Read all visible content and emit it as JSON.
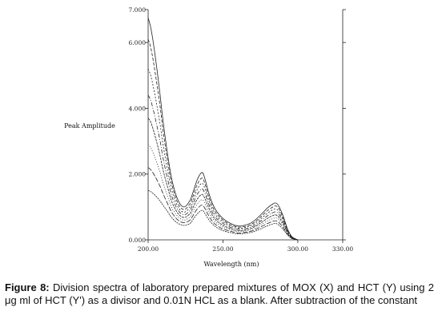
{
  "chart_data": {
    "type": "line",
    "xlabel": "Wavelength (nm)",
    "ylabel": "Peak Amplitude",
    "xlim": [
      200,
      330
    ],
    "ylim": [
      0,
      7
    ],
    "x_ticks": [
      200,
      250,
      300,
      330
    ],
    "x_tick_labels": [
      "200.00",
      "250.00",
      "300.00",
      "330.00"
    ],
    "y_ticks": [
      0,
      2,
      4,
      6,
      7
    ],
    "y_tick_labels": [
      "0.000",
      "2.000",
      "4.000",
      "6.000",
      "7.000"
    ],
    "grid": false,
    "line_color": "#222222",
    "x": [
      200,
      202,
      205,
      208,
      210,
      213,
      216,
      220,
      224,
      228,
      230,
      233,
      236,
      238,
      240,
      243,
      246,
      250,
      255,
      260,
      265,
      270,
      275,
      280,
      283,
      285,
      287,
      290,
      293,
      296,
      300
    ],
    "series": [
      {
        "values": [
          6.75,
          6.4,
          5.5,
          4.4,
          3.6,
          2.6,
          1.8,
          1.2,
          1.0,
          1.2,
          1.45,
          1.85,
          2.05,
          1.85,
          1.5,
          1.1,
          0.85,
          0.65,
          0.5,
          0.42,
          0.45,
          0.55,
          0.75,
          0.98,
          1.08,
          1.12,
          1.05,
          0.75,
          0.35,
          0.1,
          0.0
        ]
      },
      {
        "values": [
          6.1,
          5.8,
          5.0,
          4.05,
          3.3,
          2.4,
          1.66,
          1.1,
          0.92,
          1.1,
          1.33,
          1.7,
          1.88,
          1.7,
          1.38,
          1.01,
          0.78,
          0.6,
          0.46,
          0.39,
          0.41,
          0.5,
          0.69,
          0.9,
          0.99,
          1.03,
          0.97,
          0.69,
          0.32,
          0.09,
          0.0
        ]
      },
      {
        "values": [
          5.2,
          4.95,
          4.3,
          3.5,
          2.88,
          2.12,
          1.48,
          1.0,
          0.84,
          1.0,
          1.21,
          1.55,
          1.72,
          1.55,
          1.26,
          0.92,
          0.71,
          0.55,
          0.42,
          0.35,
          0.38,
          0.46,
          0.63,
          0.82,
          0.91,
          0.94,
          0.88,
          0.63,
          0.29,
          0.08,
          0.0
        ]
      },
      {
        "values": [
          4.4,
          4.2,
          3.65,
          3.0,
          2.48,
          1.85,
          1.3,
          0.9,
          0.76,
          0.9,
          1.1,
          1.4,
          1.55,
          1.4,
          1.14,
          0.83,
          0.64,
          0.5,
          0.38,
          0.32,
          0.34,
          0.41,
          0.57,
          0.74,
          0.82,
          0.85,
          0.8,
          0.57,
          0.27,
          0.07,
          0.0
        ]
      },
      {
        "values": [
          3.7,
          3.55,
          3.1,
          2.55,
          2.12,
          1.6,
          1.14,
          0.8,
          0.68,
          0.8,
          0.98,
          1.25,
          1.38,
          1.25,
          1.02,
          0.74,
          0.57,
          0.44,
          0.34,
          0.28,
          0.3,
          0.37,
          0.51,
          0.66,
          0.73,
          0.76,
          0.71,
          0.51,
          0.24,
          0.06,
          0.0
        ]
      },
      {
        "values": [
          2.9,
          2.78,
          2.45,
          2.05,
          1.72,
          1.32,
          0.96,
          0.7,
          0.6,
          0.7,
          0.86,
          1.1,
          1.22,
          1.1,
          0.89,
          0.65,
          0.5,
          0.39,
          0.3,
          0.25,
          0.27,
          0.32,
          0.45,
          0.58,
          0.64,
          0.67,
          0.63,
          0.45,
          0.21,
          0.05,
          0.0
        ]
      },
      {
        "values": [
          2.2,
          2.12,
          1.9,
          1.62,
          1.4,
          1.1,
          0.82,
          0.6,
          0.52,
          0.6,
          0.74,
          0.95,
          1.06,
          0.95,
          0.77,
          0.56,
          0.43,
          0.33,
          0.26,
          0.21,
          0.23,
          0.28,
          0.39,
          0.5,
          0.56,
          0.58,
          0.54,
          0.39,
          0.18,
          0.05,
          0.0
        ]
      },
      {
        "values": [
          1.5,
          1.46,
          1.34,
          1.18,
          1.05,
          0.86,
          0.66,
          0.5,
          0.44,
          0.5,
          0.62,
          0.8,
          0.9,
          0.8,
          0.65,
          0.48,
          0.37,
          0.28,
          0.22,
          0.18,
          0.2,
          0.24,
          0.33,
          0.43,
          0.48,
          0.5,
          0.46,
          0.33,
          0.16,
          0.04,
          0.0
        ]
      }
    ]
  },
  "caption": {
    "label": "Figure 8:",
    "text": " Division spectra of laboratory prepared mixtures of MOX (X) and HCT (Y) using 2 μg ml of HCT (Y') as a divisor and 0.01N HCL as a blank. After subtraction of the constant"
  }
}
